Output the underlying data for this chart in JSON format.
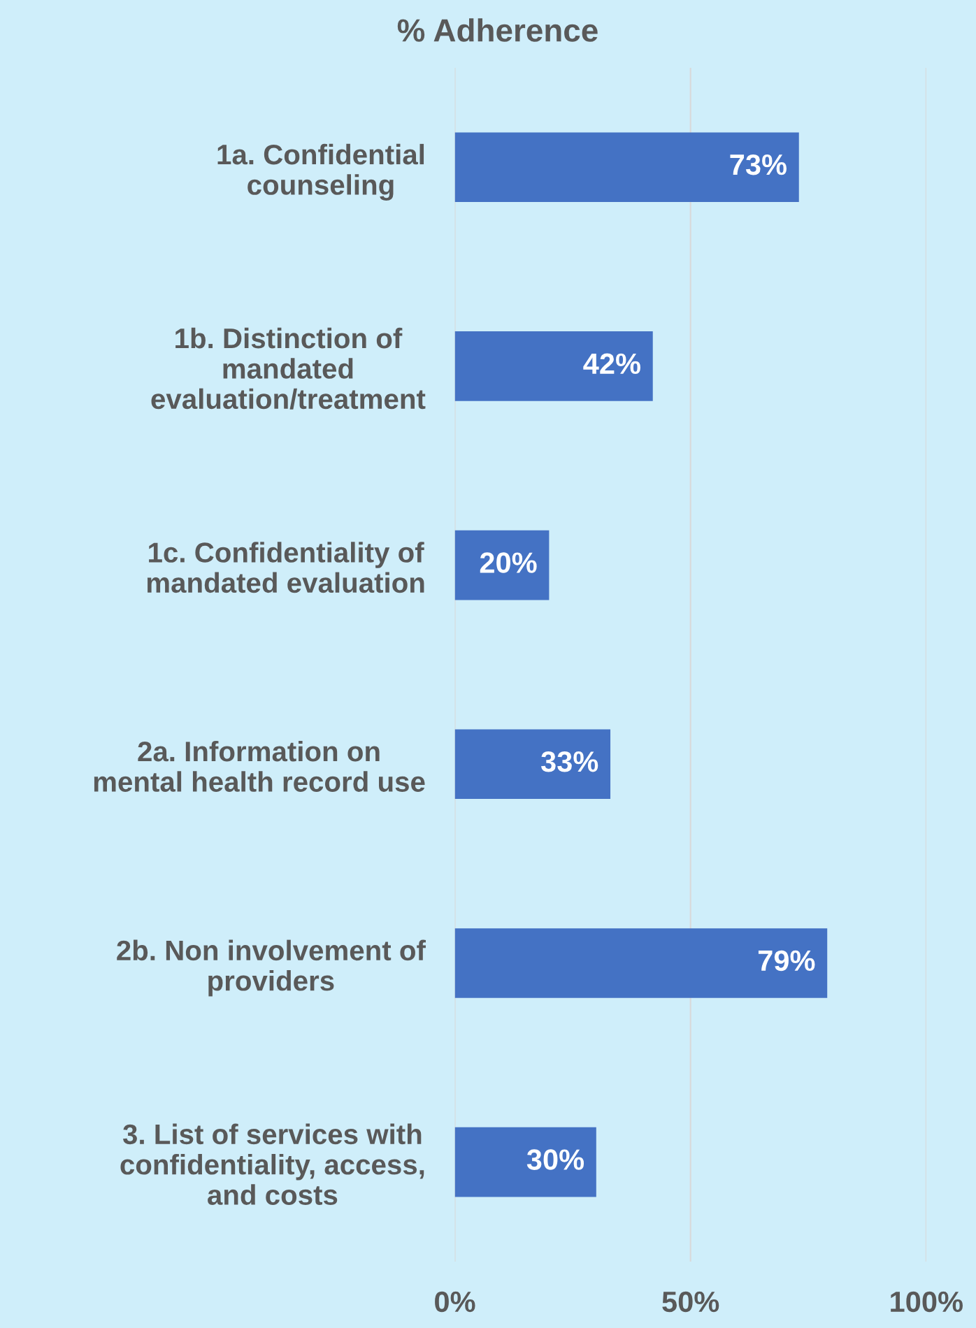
{
  "chart_data": {
    "type": "bar",
    "orientation": "horizontal",
    "title": "% Adherence",
    "categories": [
      "1a. Confidential\ncounseling",
      "1b. Distinction of\nmandated\nevaluation/treatment",
      "1c. Confidentiality of\nmandated evaluation",
      "2a. Information on\nmental health record use",
      "2b. Non involvement of\nproviders",
      "3. List of services with\nconfidentiality, access,\nand costs"
    ],
    "values": [
      73,
      42,
      20,
      33,
      79,
      30
    ],
    "value_labels": [
      "73%",
      "42%",
      "20%",
      "33%",
      "79%",
      "30%"
    ],
    "color": "#4472c4",
    "xlim": [
      0,
      100
    ],
    "xticks": [
      {
        "value": 0,
        "label": "0%"
      },
      {
        "value": 50,
        "label": "50%"
      },
      {
        "value": 100,
        "label": "100%"
      }
    ],
    "grid": "x",
    "legend": false
  }
}
